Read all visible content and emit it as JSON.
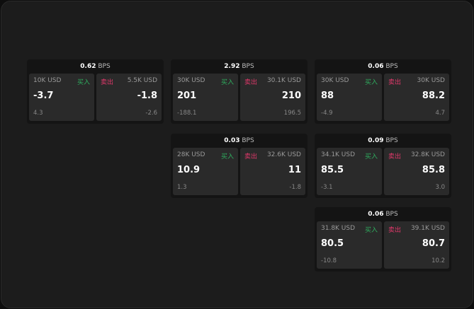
{
  "unit": "BPS",
  "buy_label": "买入",
  "sell_label": "卖出",
  "colors": {
    "buy": "#2fae5f",
    "sell": "#e0386a"
  },
  "cards": [
    {
      "spread": "0.62",
      "bid": {
        "size": "10K USD",
        "price": "-3.7",
        "change": "4.3"
      },
      "ask": {
        "size": "5.5K USD",
        "price": "-1.8",
        "change": "-2.6"
      }
    },
    {
      "spread": "2.92",
      "bid": {
        "size": "30K USD",
        "price": "201",
        "change": "-188.1"
      },
      "ask": {
        "size": "30.1K USD",
        "price": "210",
        "change": "196.5"
      }
    },
    {
      "spread": "0.06",
      "bid": {
        "size": "30K USD",
        "price": "88",
        "change": "-4.9"
      },
      "ask": {
        "size": "30K USD",
        "price": "88.2",
        "change": "4.7"
      }
    },
    {
      "spread": "0.03",
      "bid": {
        "size": "28K USD",
        "price": "10.9",
        "change": "1.3"
      },
      "ask": {
        "size": "32.6K USD",
        "price": "11",
        "change": "-1.8"
      }
    },
    {
      "spread": "0.09",
      "bid": {
        "size": "34.1K USD",
        "price": "85.5",
        "change": "-3.1"
      },
      "ask": {
        "size": "32.8K USD",
        "price": "85.8",
        "change": "3.0"
      }
    },
    {
      "spread": "0.06",
      "bid": {
        "size": "31.8K USD",
        "price": "80.5",
        "change": "-10.8"
      },
      "ask": {
        "size": "39.1K USD",
        "price": "80.7",
        "change": "10.2"
      }
    }
  ]
}
